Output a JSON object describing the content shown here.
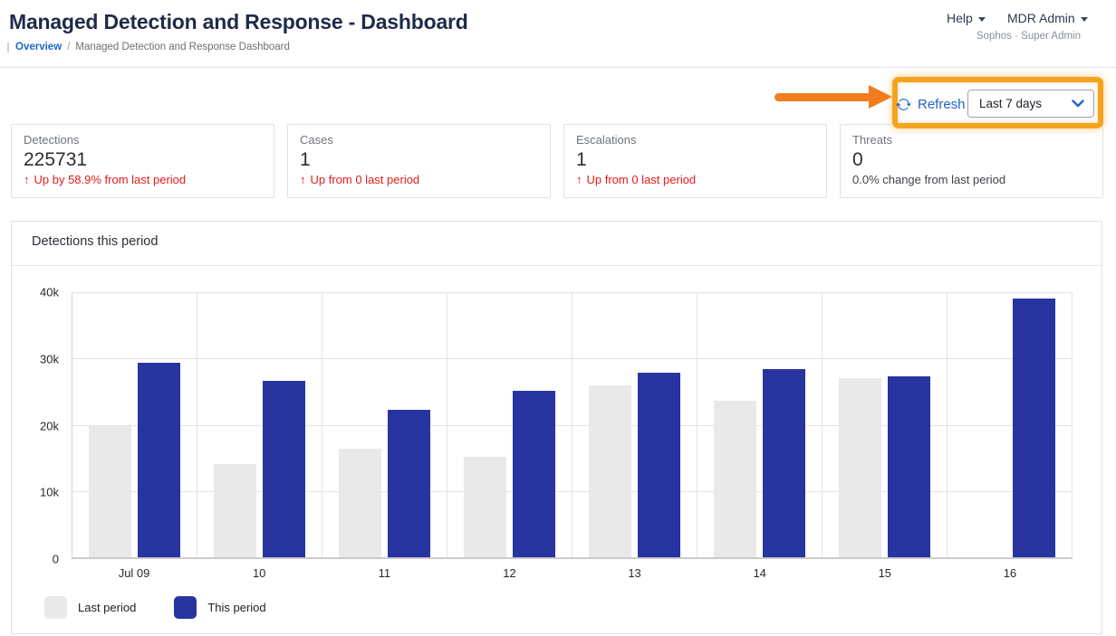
{
  "page": {
    "title": "Managed Detection and Response - Dashboard",
    "breadcrumb": {
      "link": "Overview",
      "separator": "/",
      "current": "Managed Detection and Response Dashboard"
    }
  },
  "topnav": {
    "help_label": "Help",
    "account_label": "MDR Admin",
    "account_subtitle": "Sophos · Super Admin"
  },
  "toolbar": {
    "refresh_label": "Refresh",
    "period_dropdown_value": "Last 7 days"
  },
  "stat_cards": [
    {
      "label": "Detections",
      "value": "225731",
      "delta_arrow": "↑",
      "delta_text": "Up by 58.9% from last period",
      "delta_style": "red"
    },
    {
      "label": "Cases",
      "value": "1",
      "delta_arrow": "↑",
      "delta_text": "Up from 0 last period",
      "delta_style": "red"
    },
    {
      "label": "Escalations",
      "value": "1",
      "delta_arrow": "↑",
      "delta_text": "Up from 0 last period",
      "delta_style": "red"
    },
    {
      "label": "Threats",
      "value": "0",
      "delta_arrow": "",
      "delta_text": "0.0% change from last period",
      "delta_style": "neutral"
    }
  ],
  "chart_panel": {
    "title": "Detections this period"
  },
  "chart_data": {
    "type": "bar",
    "title": "Detections this period",
    "categories": [
      "Jul 09",
      "10",
      "11",
      "12",
      "13",
      "14",
      "15",
      "16"
    ],
    "series": [
      {
        "name": "Last period",
        "color": "#e9e9e9",
        "values": [
          19800,
          14000,
          16400,
          15200,
          25900,
          23600,
          27000,
          0
        ]
      },
      {
        "name": "This period",
        "color": "#2834a0",
        "values": [
          29300,
          26600,
          22300,
          25100,
          27800,
          28400,
          27300,
          39000
        ]
      }
    ],
    "xlabel": "",
    "ylabel": "",
    "ylim": [
      0,
      40000
    ],
    "yticks": [
      "40k",
      "30k",
      "20k",
      "10k",
      "0"
    ],
    "grid": true,
    "legend_position": "bottom-left"
  },
  "colors": {
    "annotation_orange": "#f5a31f",
    "arrow_orange": "#f17d1e",
    "accent_blue": "#1f63c9",
    "delta_red": "#e31b1b",
    "title_navy": "#1e2b49",
    "bar_last_period": "#e9e9e9",
    "bar_this_period": "#2834a0"
  }
}
